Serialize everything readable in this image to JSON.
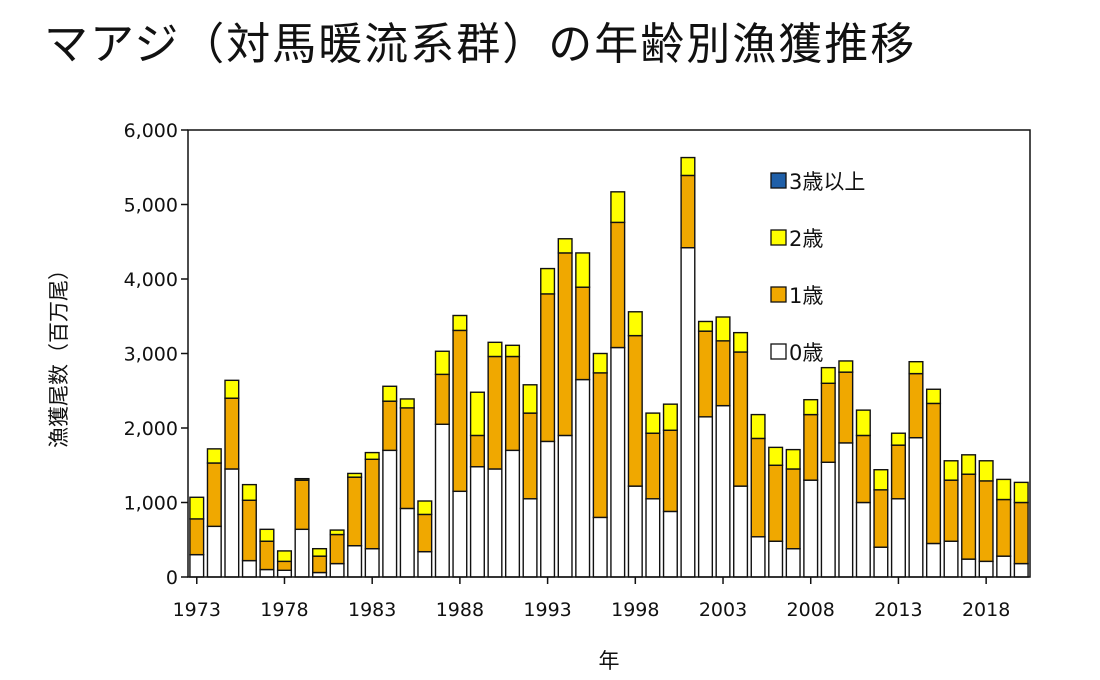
{
  "title": "マアジ（対馬暖流系群）の年齢別漁獲推移",
  "chart_data": {
    "type": "bar",
    "stacked": true,
    "x": [
      1973,
      1974,
      1975,
      1976,
      1977,
      1978,
      1979,
      1980,
      1981,
      1982,
      1983,
      1984,
      1985,
      1986,
      1987,
      1988,
      1989,
      1990,
      1991,
      1992,
      1993,
      1994,
      1995,
      1996,
      1997,
      1998,
      1999,
      2000,
      2001,
      2002,
      2003,
      2004,
      2005,
      2006,
      2007,
      2008,
      2009,
      2010,
      2011,
      2012,
      2013,
      2014,
      2015,
      2016,
      2017,
      2018,
      2019,
      2020
    ],
    "xticks": [
      1973,
      1978,
      1983,
      1988,
      1993,
      1998,
      2003,
      2008,
      2013,
      2018
    ],
    "xlabel": "年",
    "ylabel": "漁獲尾数（百万尾）",
    "ylim": [
      0,
      6000
    ],
    "yticks": [
      0,
      1000,
      2000,
      3000,
      4000,
      5000,
      6000
    ],
    "ytick_labels": [
      "0",
      "1,000",
      "2,000",
      "3,000",
      "4,000",
      "5,000",
      "6,000"
    ],
    "legend_position": "top-right",
    "grid": false,
    "series": [
      {
        "name": "0歳",
        "color": "#ffffff",
        "values": [
          300,
          680,
          1450,
          220,
          100,
          90,
          640,
          60,
          180,
          420,
          380,
          1700,
          920,
          340,
          2050,
          1150,
          1480,
          1450,
          1700,
          1050,
          1820,
          1900,
          2650,
          800,
          3080,
          1220,
          1050,
          880,
          4420,
          2150,
          2300,
          1220,
          540,
          480,
          380,
          1300,
          1540,
          1800,
          1000,
          400,
          1050,
          1870,
          450,
          480,
          240,
          210,
          280,
          180
        ]
      },
      {
        "name": "1歳",
        "color": "#f0a800",
        "values": [
          480,
          850,
          950,
          810,
          380,
          120,
          660,
          220,
          390,
          920,
          1200,
          660,
          1350,
          500,
          670,
          2160,
          420,
          1510,
          1260,
          1150,
          1980,
          2450,
          1240,
          1940,
          1680,
          2020,
          880,
          1090,
          970,
          1150,
          870,
          1800,
          1320,
          1020,
          1070,
          880,
          1060,
          950,
          900,
          770,
          720,
          860,
          1880,
          820,
          1140,
          1080,
          760,
          820
        ]
      },
      {
        "name": "2歳",
        "color": "#ffff00",
        "values": [
          290,
          190,
          240,
          210,
          160,
          140,
          20,
          100,
          60,
          50,
          90,
          200,
          120,
          180,
          310,
          200,
          580,
          190,
          150,
          380,
          340,
          190,
          460,
          260,
          410,
          320,
          270,
          350,
          240,
          130,
          320,
          260,
          320,
          240,
          260,
          200,
          210,
          150,
          340,
          270,
          160,
          160,
          190,
          260,
          260,
          270,
          270,
          270
        ]
      },
      {
        "name": "3歳以上",
        "color": "#1f5fa8",
        "values": [
          0,
          0,
          0,
          0,
          0,
          0,
          0,
          0,
          0,
          0,
          0,
          0,
          0,
          0,
          0,
          0,
          0,
          0,
          0,
          0,
          0,
          0,
          0,
          0,
          0,
          0,
          0,
          0,
          0,
          0,
          0,
          0,
          0,
          0,
          0,
          0,
          0,
          0,
          0,
          0,
          0,
          0,
          0,
          0,
          0,
          0,
          0,
          0
        ]
      }
    ],
    "legend_order": [
      "3歳以上",
      "2歳",
      "1歳",
      "0歳"
    ]
  }
}
